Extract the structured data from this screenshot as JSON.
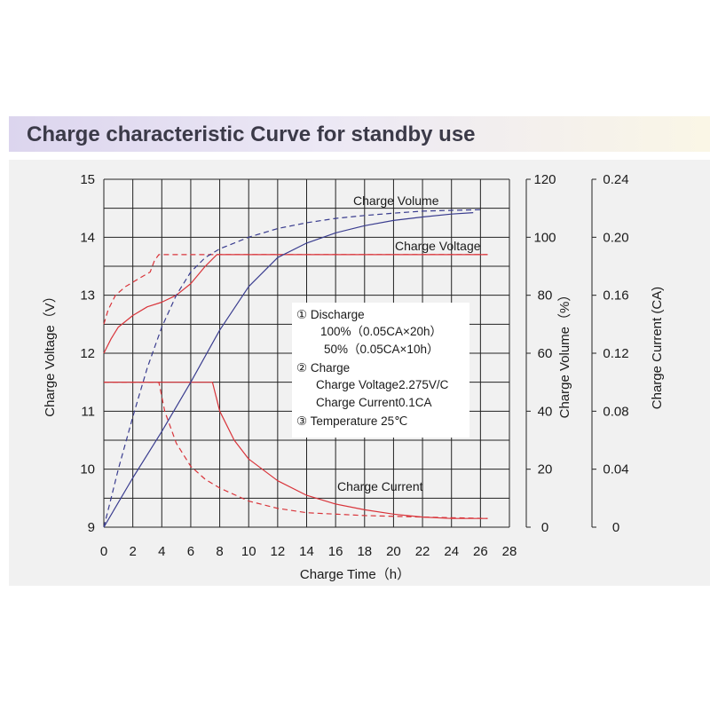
{
  "title": "Charge characteristic Curve for standby use",
  "chart_data": {
    "type": "line",
    "title": "Charge characteristic Curve for standby use",
    "xlabel": "Charge Time（h）",
    "ylabel_left": "Charge Voltage（V）",
    "ylabel_right1": "Charge Volume（%）",
    "ylabel_right2": "Charge Current (CA)",
    "xlim": [
      0,
      26
    ],
    "ylim_left": [
      9,
      15
    ],
    "ylim_volume": [
      0,
      120
    ],
    "ylim_current": [
      0,
      0.24
    ],
    "x_ticks": [
      "0",
      "2",
      "4",
      "6",
      "8",
      "10",
      "12",
      "14",
      "16",
      "18",
      "20",
      "22",
      "24",
      "26",
      "28"
    ],
    "y_ticks_left": [
      "9",
      "10",
      "11",
      "12",
      "13",
      "14",
      "15"
    ],
    "y_ticks_volume": [
      "0",
      "20",
      "40",
      "60",
      "80",
      "100",
      "120"
    ],
    "y_ticks_current": [
      "0",
      "0.04",
      "0.08",
      "0.12",
      "0.16",
      "0.20",
      "0.24"
    ],
    "grid": true,
    "curve_labels": {
      "volume": "Charge Volume",
      "voltage": "Charge Voltage",
      "current": "Charge Current"
    },
    "annotation": [
      "① Discharge",
      "100%（0.05CA×20h）",
      "50%（0.05CA×10h）",
      "② Charge",
      "Charge Voltage2.275V/C",
      "Charge Current0.1CA",
      "③ Temperature 25℃"
    ],
    "colors": {
      "voltage": "#d9343a",
      "current": "#d9343a",
      "volume": "#3a3d8f"
    },
    "series": [
      {
        "axis": "voltage",
        "style": "solid",
        "points": [
          [
            0,
            12.0
          ],
          [
            0.5,
            12.25
          ],
          [
            1,
            12.45
          ],
          [
            2,
            12.65
          ],
          [
            3,
            12.8
          ],
          [
            4,
            12.88
          ],
          [
            5,
            13.0
          ],
          [
            6,
            13.2
          ],
          [
            7,
            13.5
          ],
          [
            7.8,
            13.7
          ],
          [
            10,
            13.7
          ],
          [
            14,
            13.7
          ],
          [
            20,
            13.7
          ],
          [
            24,
            13.7
          ],
          [
            26.5,
            13.7
          ]
        ]
      },
      {
        "axis": "voltage",
        "style": "dashed",
        "points": [
          [
            0,
            12.5
          ],
          [
            0.3,
            12.75
          ],
          [
            0.8,
            13.0
          ],
          [
            1.5,
            13.15
          ],
          [
            2.5,
            13.3
          ],
          [
            3.2,
            13.4
          ],
          [
            3.5,
            13.6
          ],
          [
            3.8,
            13.7
          ],
          [
            5,
            13.7
          ],
          [
            8,
            13.7
          ],
          [
            12,
            13.7
          ],
          [
            20,
            13.7
          ],
          [
            26.5,
            13.7
          ]
        ]
      },
      {
        "axis": "current",
        "style": "solid",
        "points": [
          [
            0,
            0.1
          ],
          [
            7.5,
            0.1
          ],
          [
            8,
            0.08
          ],
          [
            9,
            0.06
          ],
          [
            10,
            0.047
          ],
          [
            12,
            0.032
          ],
          [
            14,
            0.022
          ],
          [
            16,
            0.016
          ],
          [
            18,
            0.012
          ],
          [
            20,
            0.009
          ],
          [
            22,
            0.007
          ],
          [
            24,
            0.006
          ],
          [
            26.5,
            0.006
          ]
        ]
      },
      {
        "axis": "current",
        "style": "dashed",
        "points": [
          [
            0,
            0.1
          ],
          [
            3.8,
            0.1
          ],
          [
            4.2,
            0.08
          ],
          [
            5,
            0.058
          ],
          [
            6,
            0.042
          ],
          [
            7,
            0.033
          ],
          [
            8,
            0.027
          ],
          [
            10,
            0.018
          ],
          [
            12,
            0.013
          ],
          [
            14,
            0.01
          ],
          [
            18,
            0.008
          ],
          [
            22,
            0.007
          ],
          [
            26.5,
            0.006
          ]
        ]
      },
      {
        "axis": "volume",
        "style": "solid",
        "points": [
          [
            0,
            0
          ],
          [
            2,
            17
          ],
          [
            4,
            33
          ],
          [
            6,
            50
          ],
          [
            8,
            68
          ],
          [
            10,
            83
          ],
          [
            12,
            93
          ],
          [
            14,
            98
          ],
          [
            16,
            101.5
          ],
          [
            18,
            104
          ],
          [
            20,
            105.8
          ],
          [
            22,
            107
          ],
          [
            24,
            108
          ],
          [
            25.5,
            108.5
          ]
        ]
      },
      {
        "axis": "volume",
        "style": "dashed",
        "points": [
          [
            0,
            0
          ],
          [
            0.5,
            10
          ],
          [
            1,
            20
          ],
          [
            2,
            38
          ],
          [
            3,
            55
          ],
          [
            4,
            69
          ],
          [
            5,
            80
          ],
          [
            6,
            88
          ],
          [
            7,
            93
          ],
          [
            8,
            96
          ],
          [
            10,
            100
          ],
          [
            12,
            103
          ],
          [
            14,
            105
          ],
          [
            16,
            106.5
          ],
          [
            18,
            107.5
          ],
          [
            20,
            108.3
          ],
          [
            22,
            109
          ],
          [
            24,
            109.3
          ],
          [
            26,
            109.5
          ]
        ]
      }
    ]
  }
}
